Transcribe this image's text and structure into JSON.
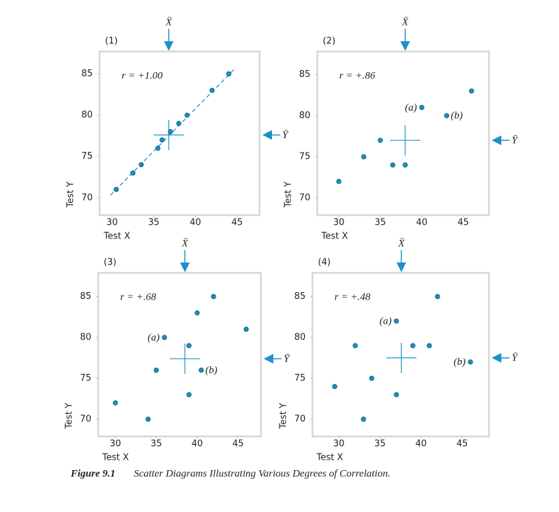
{
  "chart_data": [
    {
      "type": "scatter",
      "panel_label": "(1)",
      "annotation": "r = +1.00",
      "x_label": "Test X",
      "y_label": "Test Y",
      "x": [
        30.5,
        32.5,
        33.5,
        35.5,
        36,
        37,
        38,
        39,
        42,
        44
      ],
      "y": [
        71,
        73,
        74,
        76,
        77,
        78,
        79,
        80,
        83,
        85
      ],
      "point_labels": [
        null,
        null,
        null,
        null,
        null,
        null,
        null,
        null,
        null,
        null
      ],
      "color": "#1a8fc1",
      "xlim": [
        28.5,
        47.7
      ],
      "ylim": [
        67.9,
        87.7
      ],
      "xticks": [
        30,
        35,
        40,
        45
      ],
      "yticks": [
        70,
        75,
        80,
        85
      ],
      "x_mean": 36.8,
      "y_mean": 77.6,
      "x_mean_label": "X̄",
      "y_mean_label": "Ȳ",
      "fit_line": {
        "x": [
          29.8,
          44.8
        ],
        "y": [
          70.3,
          85.7
        ]
      }
    },
    {
      "type": "scatter",
      "panel_label": "(2)",
      "annotation": "r = +.86",
      "x_label": "Test X",
      "y_label": "Test Y",
      "x": [
        30,
        33,
        35,
        36.5,
        38,
        40,
        43,
        46
      ],
      "y": [
        72,
        75,
        77,
        74,
        74,
        81,
        80,
        83
      ],
      "point_labels": [
        null,
        null,
        null,
        null,
        null,
        "(a)",
        "(b)",
        null
      ],
      "color": "#1a8fc1",
      "xlim": [
        27.4,
        48.1
      ],
      "ylim": [
        67.9,
        87.8
      ],
      "xticks": [
        30,
        35,
        40,
        45
      ],
      "yticks": [
        70,
        75,
        80,
        85
      ],
      "x_mean": 38,
      "y_mean": 77,
      "x_mean_label": "X̄",
      "y_mean_label": "Ȳ"
    },
    {
      "type": "scatter",
      "panel_label": "(3)",
      "annotation": "r = +.68",
      "x_label": "Test X",
      "y_label": "Test Y",
      "x": [
        30,
        34,
        35,
        36,
        39,
        39,
        40,
        40.5,
        42,
        46
      ],
      "y": [
        72,
        70,
        76,
        80,
        79,
        73,
        83,
        76,
        85,
        81
      ],
      "point_labels": [
        null,
        null,
        null,
        "(a)",
        null,
        null,
        null,
        "(b)",
        null,
        null
      ],
      "color": "#1a8fc1",
      "xlim": [
        27.9,
        47.8
      ],
      "ylim": [
        67.9,
        87.9
      ],
      "xticks": [
        30,
        35,
        40,
        45
      ],
      "yticks": [
        70,
        75,
        80,
        85
      ],
      "x_mean": 38.5,
      "y_mean": 77.4,
      "x_mean_label": "X̄",
      "y_mean_label": "Ȳ"
    },
    {
      "type": "scatter",
      "panel_label": "(4)",
      "annotation": "r = +.48",
      "x_label": "Test X",
      "y_label": "Test Y",
      "x": [
        29.5,
        32,
        33,
        34,
        37,
        37,
        39,
        41,
        42,
        46
      ],
      "y": [
        74,
        79,
        70,
        75,
        82,
        73,
        79,
        79,
        85,
        77
      ],
      "point_labels": [
        null,
        null,
        null,
        null,
        "(a)",
        null,
        null,
        null,
        null,
        "(b)"
      ],
      "color": "#1a8fc1",
      "xlim": [
        26.8,
        48.25
      ],
      "ylim": [
        67.9,
        87.9
      ],
      "xticks": [
        30,
        35,
        40,
        45
      ],
      "yticks": [
        70,
        75,
        80,
        85
      ],
      "x_mean": 37.6,
      "y_mean": 77.5,
      "x_mean_label": "X̄",
      "y_mean_label": "Ȳ"
    }
  ],
  "figure": {
    "label": "Figure 9.1",
    "caption": "Scatter Diagrams Illustrating Various Degrees of Correlation."
  }
}
